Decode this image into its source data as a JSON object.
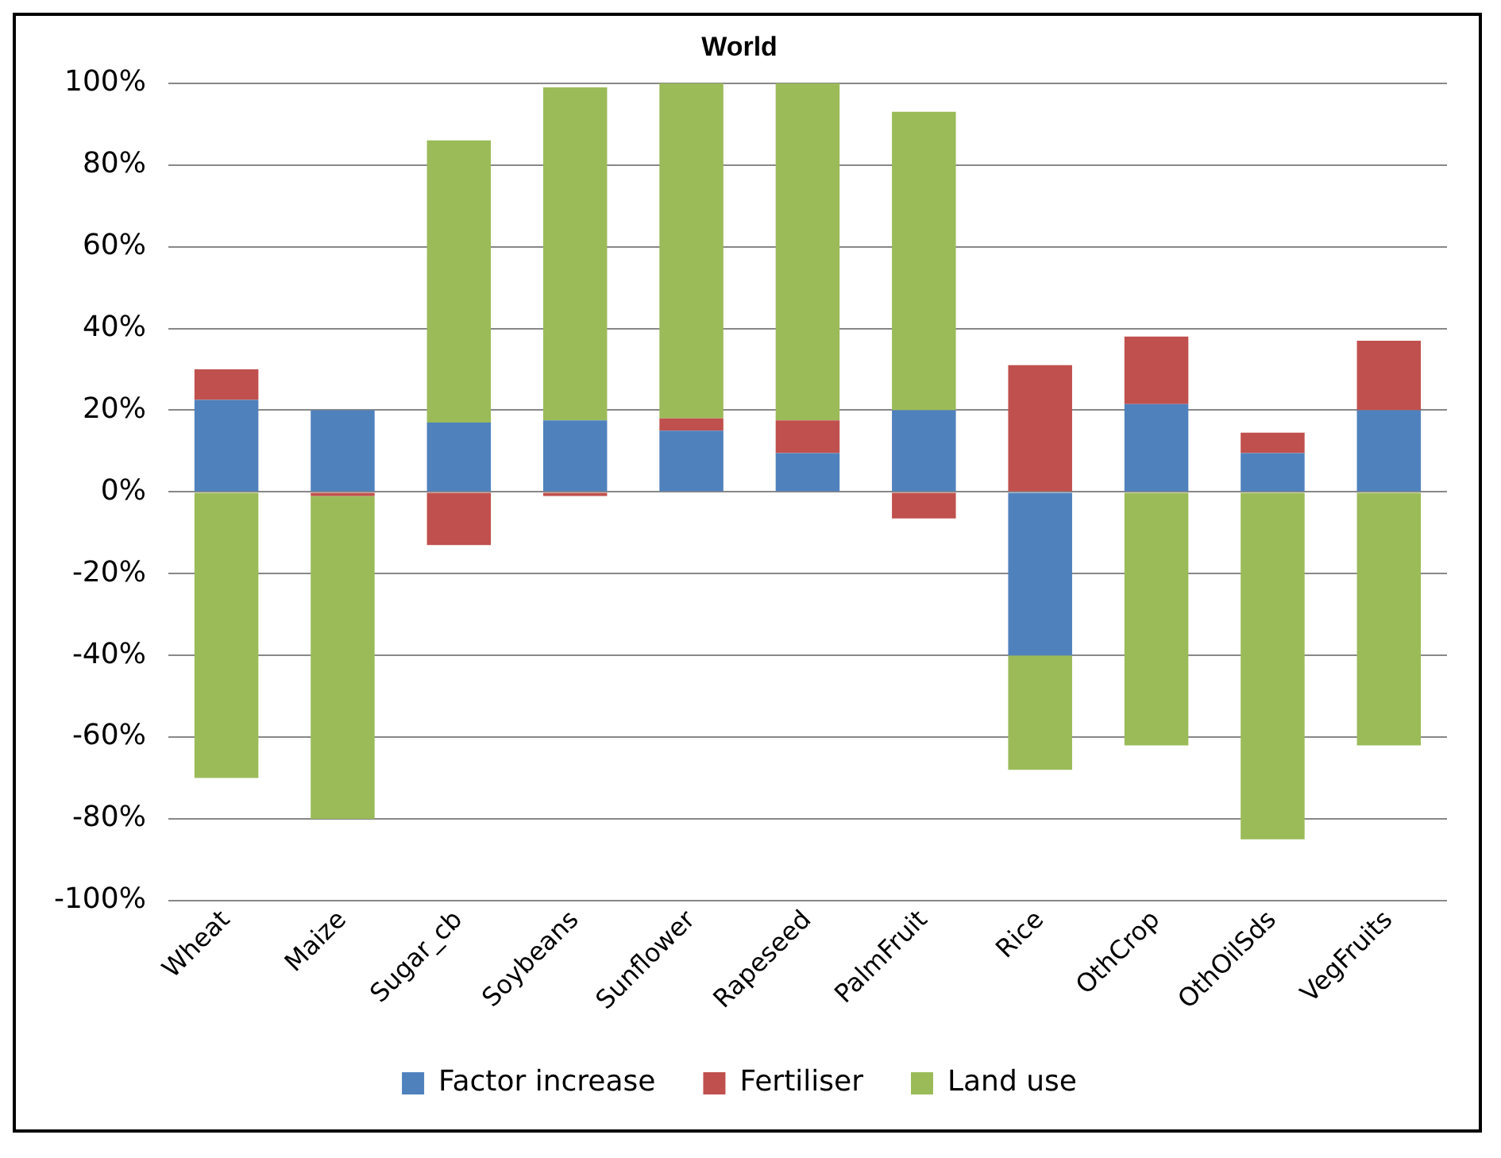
{
  "chart_data": {
    "type": "bar",
    "title": "World",
    "stacked": true,
    "grid": "y",
    "legend": "bottom",
    "categories": [
      "Wheat",
      "Maize",
      "Sugar_cb",
      "Soybeans",
      "Sunflower",
      "Rapeseed",
      "PalmFruit",
      "Rice",
      "OthCrop",
      "OthOilSds",
      "VegFruits"
    ],
    "series": [
      {
        "name": "Factor increase",
        "color": "#4f81bd",
        "values": [
          22.5,
          20,
          17,
          17.5,
          15,
          9.5,
          20,
          -40,
          21.5,
          9.5,
          20
        ]
      },
      {
        "name": "Fertiliser",
        "color": "#c0504d",
        "values": [
          7.5,
          -1,
          -13,
          -1,
          3,
          8,
          -6.5,
          31,
          16.5,
          5,
          17
        ]
      },
      {
        "name": "Land use",
        "color": "#9bbb59",
        "values": [
          -70,
          -79,
          69,
          81.5,
          82,
          82.5,
          73,
          -28,
          -62,
          -85,
          -62
        ]
      }
    ],
    "ylim": [
      -100,
      100
    ],
    "yticks": [
      {
        "value": -100,
        "label": "-100%"
      },
      {
        "value": -80,
        "label": "-80%"
      },
      {
        "value": -60,
        "label": "-60%"
      },
      {
        "value": -40,
        "label": "-40%"
      },
      {
        "value": -20,
        "label": "-20%"
      },
      {
        "value": 0,
        "label": "0%"
      },
      {
        "value": 20,
        "label": "20%"
      },
      {
        "value": 40,
        "label": "40%"
      },
      {
        "value": 60,
        "label": "60%"
      },
      {
        "value": 80,
        "label": "80%"
      },
      {
        "value": 100,
        "label": "100%"
      }
    ]
  }
}
